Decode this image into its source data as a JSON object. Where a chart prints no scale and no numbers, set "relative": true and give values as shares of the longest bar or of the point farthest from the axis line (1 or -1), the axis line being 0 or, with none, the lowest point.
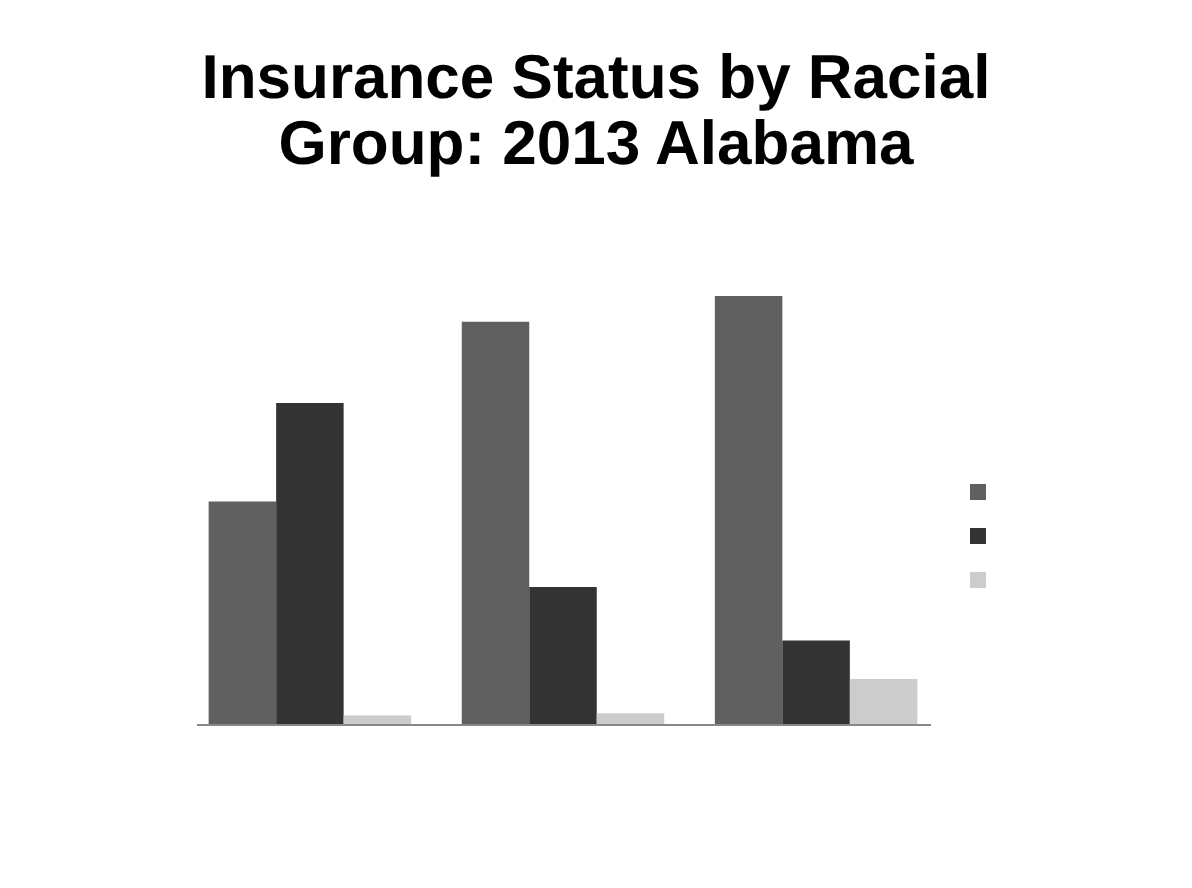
{
  "chart_data": {
    "type": "bar",
    "title": "Insurance Status by Racial Group: 2013 Alabama",
    "categories": [
      null,
      null,
      null
    ],
    "relative": true,
    "series": [
      {
        "color": "#606060",
        "values": [
          0.52,
          0.94,
          1
        ]
      },
      {
        "color": "#333333",
        "values": [
          0.75,
          0.32,
          0.195
        ]
      },
      {
        "color": "#cccccc",
        "values": [
          0.02,
          0.025,
          0.105
        ]
      }
    ]
  }
}
